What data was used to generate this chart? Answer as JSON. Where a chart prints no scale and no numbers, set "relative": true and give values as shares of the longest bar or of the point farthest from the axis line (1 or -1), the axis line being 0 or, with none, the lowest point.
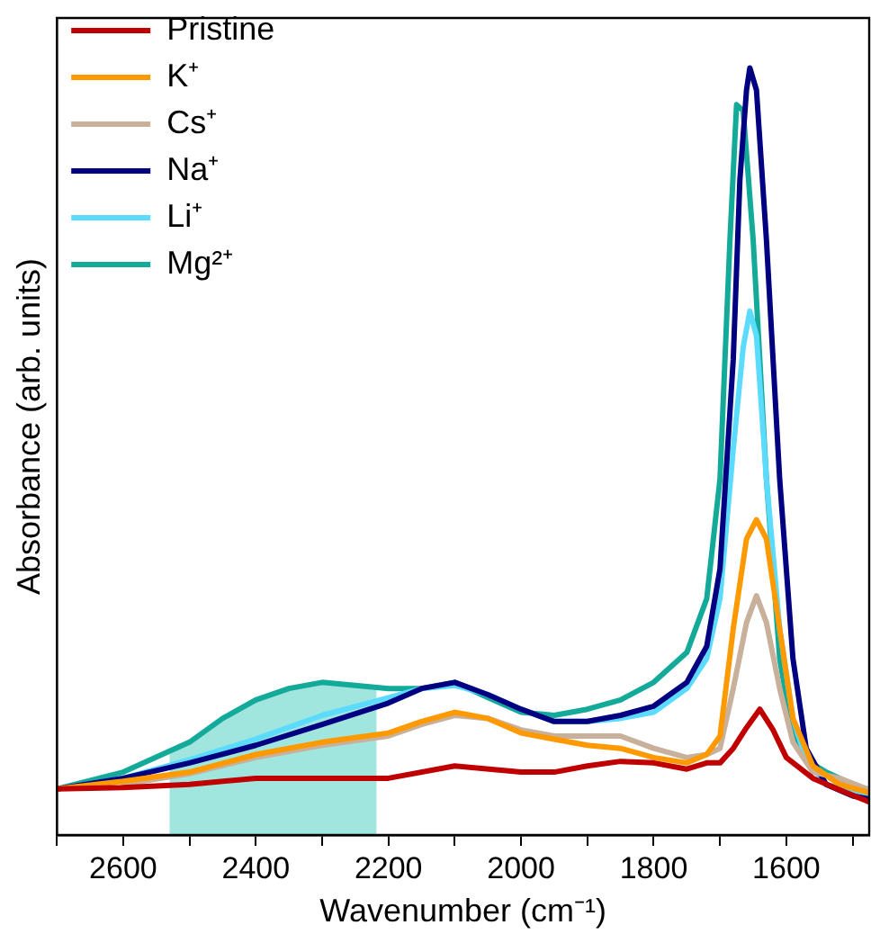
{
  "chart_data": {
    "type": "line",
    "xlabel": "Wavenumber (cm⁻¹)",
    "ylabel": "Absorbance (arb. units)",
    "relative": true,
    "grid": false,
    "legend": "top left",
    "marker": "none",
    "xlim": [
      2700,
      1475
    ],
    "xticks": [
      {
        "value": 2700,
        "label": null
      },
      2600,
      {
        "value": 2500,
        "label": null
      },
      2400,
      {
        "value": 2300,
        "label": null
      },
      2200,
      {
        "value": 2100,
        "label": null
      },
      2000,
      {
        "value": 1900,
        "label": null
      },
      1800,
      {
        "value": 1700,
        "label": null
      },
      1600,
      {
        "value": 1500,
        "label": null
      }
    ],
    "bands": [
      {
        "axis": "x",
        "from": 2530,
        "to": 2218,
        "color": "#a0e6de"
      }
    ],
    "series": [
      {
        "name": "Pristine",
        "color": "#c00000",
        "x": [
          2700,
          2600,
          2500,
          2400,
          2300,
          2200,
          2100,
          2000,
          1950,
          1900,
          1850,
          1800,
          1750,
          1720,
          1700,
          1680,
          1660,
          1640,
          1620,
          1600,
          1560,
          1520,
          1475
        ],
        "values": [
          0.06,
          0.062,
          0.066,
          0.074,
          0.074,
          0.074,
          0.09,
          0.082,
          0.082,
          0.09,
          0.096,
          0.094,
          0.086,
          0.094,
          0.094,
          0.113,
          0.14,
          0.164,
          0.137,
          0.101,
          0.074,
          0.059,
          0.043
        ]
      },
      {
        "name": "K⁺",
        "color": "#ff9900",
        "x": [
          2700,
          2600,
          2500,
          2400,
          2300,
          2200,
          2150,
          2100,
          2050,
          2000,
          1950,
          1900,
          1850,
          1800,
          1750,
          1720,
          1700,
          1680,
          1660,
          1645,
          1630,
          1610,
          1590,
          1560,
          1520,
          1475
        ],
        "values": [
          0.06,
          0.07,
          0.082,
          0.105,
          0.121,
          0.133,
          0.148,
          0.16,
          0.152,
          0.133,
          0.125,
          0.117,
          0.113,
          0.101,
          0.094,
          0.105,
          0.129,
          0.269,
          0.386,
          0.411,
          0.386,
          0.269,
          0.152,
          0.09,
          0.066,
          0.055
        ]
      },
      {
        "name": "Cs⁺",
        "color": "#c8b09a",
        "x": [
          2600,
          2500,
          2400,
          2300,
          2200,
          2150,
          2100,
          2050,
          2000,
          1950,
          1900,
          1850,
          1800,
          1750,
          1720,
          1700,
          1680,
          1660,
          1645,
          1630,
          1610,
          1590,
          1560,
          1520,
          1475
        ],
        "values": [
          0.066,
          0.08,
          0.101,
          0.117,
          0.129,
          0.144,
          0.156,
          0.152,
          0.137,
          0.129,
          0.129,
          0.129,
          0.113,
          0.101,
          0.105,
          0.113,
          0.191,
          0.277,
          0.312,
          0.277,
          0.191,
          0.121,
          0.082,
          0.074,
          0.059
        ]
      },
      {
        "name": "Na⁺",
        "color": "#000080",
        "x": [
          2700,
          2600,
          2500,
          2400,
          2300,
          2200,
          2150,
          2100,
          2050,
          2000,
          1950,
          1900,
          1850,
          1800,
          1750,
          1720,
          1700,
          1680,
          1670,
          1660,
          1655,
          1645,
          1630,
          1610,
          1590,
          1570,
          1540,
          1500,
          1475
        ],
        "values": [
          0.06,
          0.074,
          0.094,
          0.117,
          0.144,
          0.172,
          0.191,
          0.199,
          0.183,
          0.164,
          0.148,
          0.148,
          0.156,
          0.168,
          0.199,
          0.246,
          0.347,
          0.62,
          0.854,
          0.971,
          1,
          0.971,
          0.776,
          0.464,
          0.23,
          0.113,
          0.066,
          0.051,
          0.047
        ]
      },
      {
        "name": "Li⁺",
        "color": "#5bdcff",
        "x": [
          2700,
          2600,
          2500,
          2400,
          2300,
          2200,
          2150,
          2100,
          2050,
          2000,
          1950,
          1900,
          1850,
          1800,
          1750,
          1720,
          1700,
          1680,
          1665,
          1655,
          1645,
          1630,
          1610,
          1590,
          1570,
          1540,
          1475
        ],
        "values": [
          0.06,
          0.074,
          0.098,
          0.125,
          0.156,
          0.179,
          0.191,
          0.195,
          0.183,
          0.164,
          0.148,
          0.148,
          0.152,
          0.16,
          0.191,
          0.23,
          0.308,
          0.503,
          0.636,
          0.683,
          0.651,
          0.464,
          0.269,
          0.152,
          0.098,
          0.066,
          0.051
        ]
      },
      {
        "name": "Mg²⁺",
        "color": "#14aa9a",
        "x": [
          2700,
          2600,
          2500,
          2450,
          2400,
          2350,
          2300,
          2250,
          2200,
          2150,
          2100,
          2050,
          2000,
          1950,
          1900,
          1850,
          1800,
          1750,
          1720,
          1700,
          1685,
          1675,
          1665,
          1650,
          1630,
          1610,
          1590,
          1570,
          1540,
          1500,
          1475
        ],
        "values": [
          0.06,
          0.082,
          0.121,
          0.152,
          0.176,
          0.191,
          0.199,
          0.195,
          0.191,
          0.191,
          0.199,
          0.179,
          0.16,
          0.156,
          0.164,
          0.176,
          0.199,
          0.238,
          0.308,
          0.464,
          0.776,
          0.952,
          0.944,
          0.776,
          0.464,
          0.23,
          0.129,
          0.098,
          0.082,
          0.066,
          0.059
        ]
      }
    ]
  }
}
